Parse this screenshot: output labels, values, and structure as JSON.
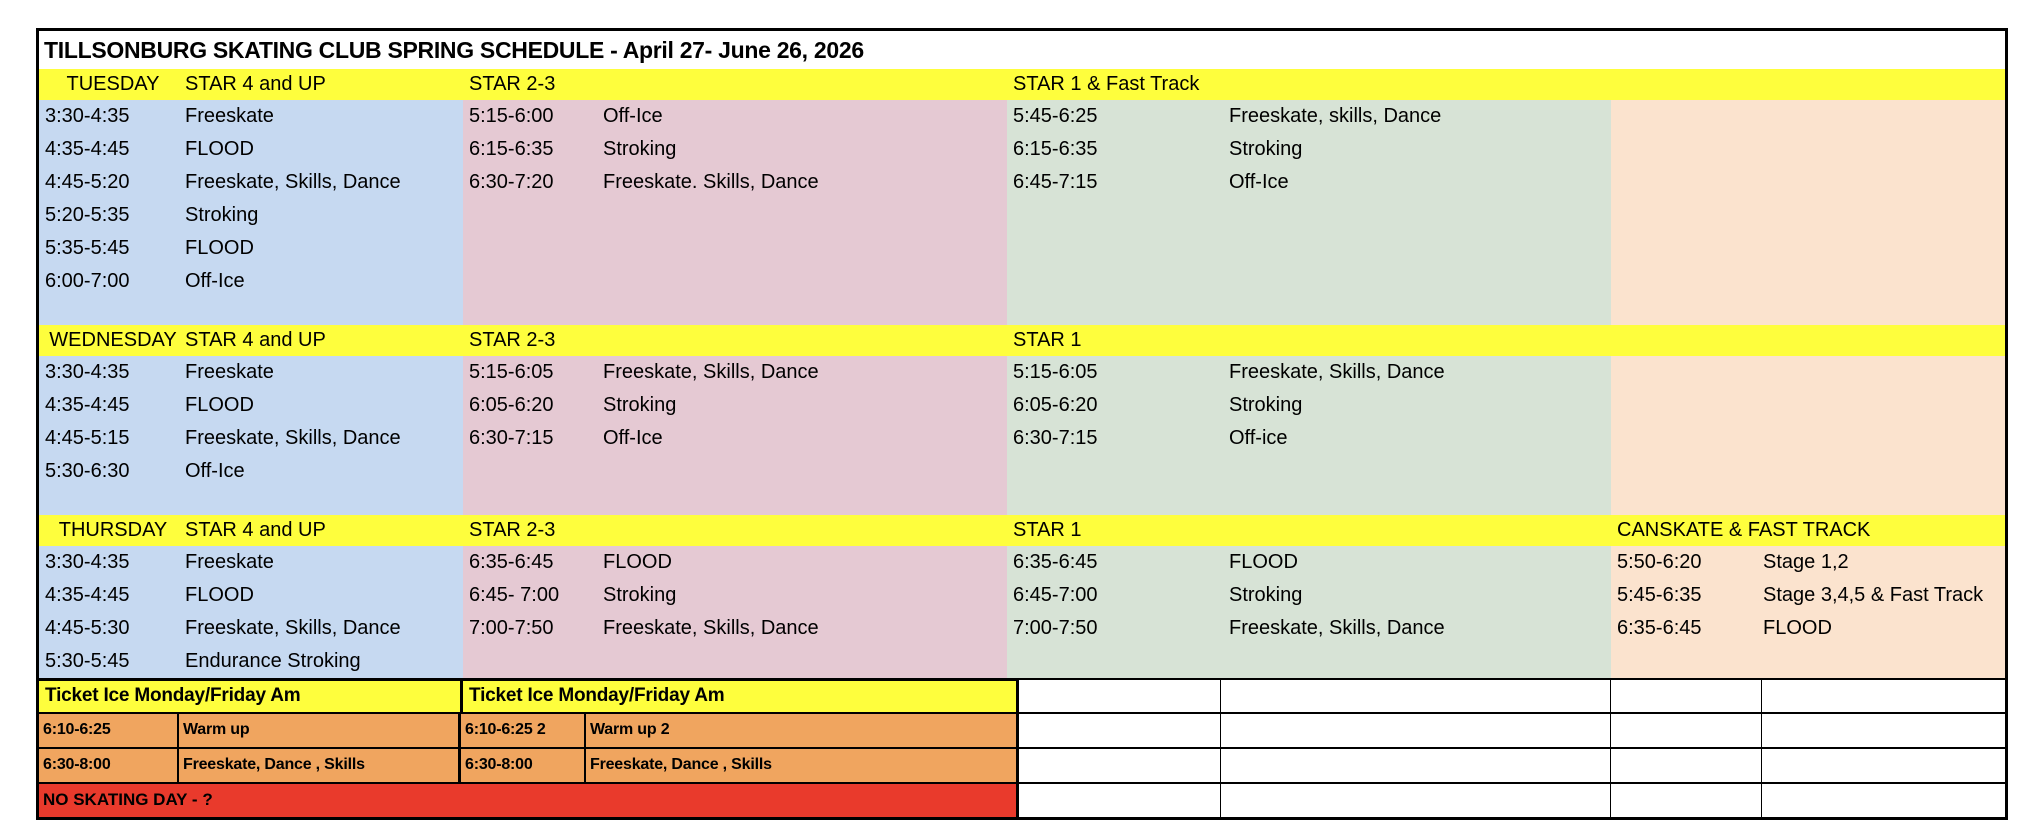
{
  "title": "TILLSONBURG SKATING CLUB SPRING SCHEDULE - April 27- June 26, 2026",
  "colors": {
    "header_yellow": "#FEFE3D",
    "star4_blue": "#C6D9F1",
    "star23_pink": "#E5C9D3",
    "star1_green": "#D7E3D6",
    "canskate_peach": "#FBE3CE",
    "ticket_orange": "#F0A55F",
    "no_skating_red": "#E93A2C"
  },
  "days": [
    {
      "name": "TUESDAY",
      "columns": [
        {
          "header": "STAR 4 and UP",
          "entries": [
            {
              "time": "3:30-4:35",
              "label": "Freeskate"
            },
            {
              "time": "4:35-4:45",
              "label": "FLOOD"
            },
            {
              "time": "4:45-5:20",
              "label": "Freeskate, Skills, Dance"
            },
            {
              "time": "5:20-5:35",
              "label": "Stroking"
            },
            {
              "time": "5:35-5:45",
              "label": "FLOOD"
            },
            {
              "time": "6:00-7:00",
              "label": "Off-Ice"
            }
          ]
        },
        {
          "header": "STAR 2-3",
          "entries": [
            {
              "time": "5:15-6:00",
              "label": "Off-Ice"
            },
            {
              "time": "6:15-6:35",
              "label": "Stroking"
            },
            {
              "time": "6:30-7:20",
              "label": "Freeskate. Skills, Dance"
            }
          ]
        },
        {
          "header": "STAR 1 & Fast Track",
          "entries": [
            {
              "time": "5:45-6:25",
              "label": "Freeskate, skills, Dance"
            },
            {
              "time": "6:15-6:35",
              "label": "Stroking"
            },
            {
              "time": "6:45-7:15",
              "label": "Off-Ice"
            }
          ]
        },
        {
          "header": "",
          "entries": []
        }
      ]
    },
    {
      "name": "WEDNESDAY",
      "columns": [
        {
          "header": "STAR 4 and UP",
          "entries": [
            {
              "time": "3:30-4:35",
              "label": "Freeskate"
            },
            {
              "time": "4:35-4:45",
              "label": "FLOOD"
            },
            {
              "time": "4:45-5:15",
              "label": "Freeskate, Skills, Dance"
            },
            {
              "time": "5:30-6:30",
              "label": "Off-Ice"
            }
          ]
        },
        {
          "header": "STAR 2-3",
          "entries": [
            {
              "time": "5:15-6:05",
              "label": "Freeskate, Skills, Dance"
            },
            {
              "time": "6:05-6:20",
              "label": "Stroking"
            },
            {
              "time": "6:30-7:15",
              "label": "Off-Ice"
            }
          ]
        },
        {
          "header": "STAR 1",
          "entries": [
            {
              "time": "5:15-6:05",
              "label": "Freeskate, Skills, Dance"
            },
            {
              "time": "6:05-6:20",
              "label": "Stroking"
            },
            {
              "time": "6:30-7:15",
              "label": "Off-ice"
            }
          ]
        },
        {
          "header": "",
          "entries": []
        }
      ]
    },
    {
      "name": "THURSDAY",
      "columns": [
        {
          "header": "STAR 4 and UP",
          "entries": [
            {
              "time": "3:30-4:35",
              "label": "Freeskate"
            },
            {
              "time": "4:35-4:45",
              "label": "FLOOD"
            },
            {
              "time": "4:45-5:30",
              "label": "Freeskate, Skills, Dance"
            },
            {
              "time": "5:30-5:45",
              "label": "Endurance Stroking"
            }
          ]
        },
        {
          "header": "STAR 2-3",
          "entries": [
            {
              "time": "6:35-6:45",
              "label": "FLOOD"
            },
            {
              "time": "6:45- 7:00",
              "label": "Stroking"
            },
            {
              "time": "7:00-7:50",
              "label": "Freeskate, Skills, Dance"
            }
          ]
        },
        {
          "header": "STAR 1",
          "entries": [
            {
              "time": "6:35-6:45",
              "label": "FLOOD"
            },
            {
              "time": "6:45-7:00",
              "label": "Stroking"
            },
            {
              "time": "7:00-7:50",
              "label": "Freeskate, Skills, Dance"
            }
          ]
        },
        {
          "header": "CANSKATE & FAST TRACK",
          "entries": [
            {
              "time": "5:50-6:20",
              "label": "Stage 1,2"
            },
            {
              "time": "5:45-6:35",
              "label": "Stage 3,4,5 & Fast Track"
            },
            {
              "time": "6:35-6:45",
              "label": "FLOOD"
            }
          ]
        }
      ]
    }
  ],
  "ticket": {
    "headers": [
      "Ticket Ice Monday/Friday Am",
      "Ticket Ice Monday/Friday Am"
    ],
    "rows": [
      {
        "cells": [
          "6:10-6:25",
          "Warm up",
          "6:10-6:25 2",
          "Warm up 2"
        ]
      },
      {
        "cells": [
          "6:30-8:00",
          "Freeskate, Dance , Skills",
          "6:30-8:00",
          "Freeskate, Dance , Skills"
        ]
      }
    ],
    "no_skating_label": "NO SKATING DAY - ?"
  }
}
